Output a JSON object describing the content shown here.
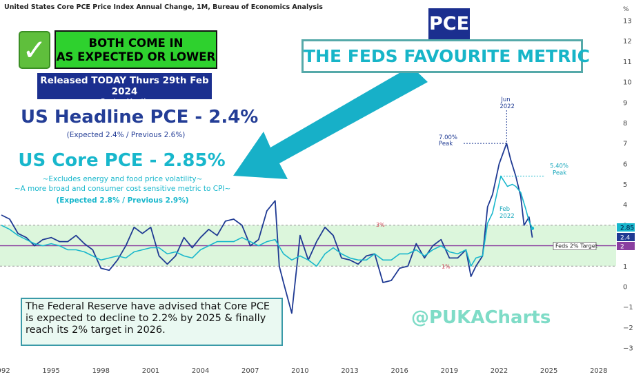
{
  "header": {
    "title": "United States Core PCE Price Index Annual Change, 1M, Bureau of Economics Analysis",
    "unit": "%"
  },
  "badges": {
    "check": "✓",
    "both_line1": "BOTH COME IN",
    "both_line2": "AS EXPECTED OR LOWER",
    "released_line1": "Released TODAY Thurs 29th Feb 2024",
    "released_line2": "For Jan Month",
    "pce": "PCE",
    "feds_metric": "THE FEDS FAVOURITE METRIC"
  },
  "headline": {
    "title": "US Headline PCE - 2.4%",
    "sub": "(Expected 2.4% / Previous 2.6%)"
  },
  "core": {
    "title": "US Core PCE - 2.85%",
    "sub1": "~Excludes energy and food price volatility~",
    "sub2": "~A more broad and consumer cost sensitive metric to CPI~",
    "sub3": "(Expected 2.8% / Previous 2.9%)"
  },
  "fed_note": "The Federal Reserve have advised that Core PCE is expected to decline to 2.2% by 2025 & finally reach its 2% target in 2026.",
  "watermark": "@PUKACharts",
  "colors": {
    "headline": "#1f3a93",
    "core": "#18b7cc",
    "band": "#d6f5d6",
    "target": "#8a3fa0"
  },
  "chart_data": {
    "type": "line",
    "ylim": [
      -3,
      13
    ],
    "xlim": [
      1992.0,
      2029.0
    ],
    "x_ticks": [
      "1992",
      "1995",
      "1998",
      "2001",
      "2004",
      "2007",
      "2010",
      "2013",
      "2016",
      "2019",
      "2022",
      "2025",
      "2028"
    ],
    "y_ticks": [
      "13",
      "12",
      "11",
      "10",
      "9",
      "8",
      "7",
      "6",
      "5",
      "4",
      "3",
      "2",
      "1",
      "0",
      "−1",
      "−2",
      "−3"
    ],
    "band": [
      1,
      3
    ],
    "band_labels": {
      "upper": "3%",
      "lower": "1%"
    },
    "target": {
      "value": 2,
      "label": "Feds 2% Target",
      "axis_label": "2"
    },
    "last_values": {
      "core": "2.85",
      "headline": "2.4"
    },
    "annotations": [
      {
        "text1": "Jun",
        "text2": "2022",
        "x": 2022.45,
        "y": 7.0
      },
      {
        "text1": "7.00%",
        "text2": "Peak",
        "x": 2022.45,
        "y": 7.0
      },
      {
        "text1": "5.40%",
        "text2": "Peak",
        "x": 2022.1,
        "y": 5.4
      },
      {
        "text1": "Feb",
        "text2": "2022",
        "x": 2022.1,
        "y": 5.4
      }
    ],
    "series": [
      {
        "name": "Headline PCE",
        "color": "#1f3a93",
        "points": [
          [
            1992.0,
            3.5
          ],
          [
            1992.5,
            3.3
          ],
          [
            1993.0,
            2.6
          ],
          [
            1993.5,
            2.4
          ],
          [
            1994.0,
            2.0
          ],
          [
            1994.5,
            2.3
          ],
          [
            1995.0,
            2.4
          ],
          [
            1995.5,
            2.2
          ],
          [
            1996.0,
            2.2
          ],
          [
            1996.5,
            2.5
          ],
          [
            1997.0,
            2.1
          ],
          [
            1997.5,
            1.8
          ],
          [
            1998.0,
            0.9
          ],
          [
            1998.5,
            0.8
          ],
          [
            1999.0,
            1.3
          ],
          [
            1999.5,
            2.0
          ],
          [
            2000.0,
            2.9
          ],
          [
            2000.5,
            2.6
          ],
          [
            2001.0,
            2.9
          ],
          [
            2001.5,
            1.5
          ],
          [
            2002.0,
            1.1
          ],
          [
            2002.5,
            1.5
          ],
          [
            2003.0,
            2.4
          ],
          [
            2003.5,
            1.9
          ],
          [
            2004.0,
            2.4
          ],
          [
            2004.5,
            2.8
          ],
          [
            2005.0,
            2.5
          ],
          [
            2005.5,
            3.2
          ],
          [
            2006.0,
            3.3
          ],
          [
            2006.5,
            3.0
          ],
          [
            2007.0,
            2.0
          ],
          [
            2007.5,
            2.3
          ],
          [
            2008.0,
            3.7
          ],
          [
            2008.5,
            4.2
          ],
          [
            2008.75,
            1.0
          ],
          [
            2009.0,
            0.2
          ],
          [
            2009.5,
            -1.3
          ],
          [
            2009.9,
            1.7
          ],
          [
            2010.0,
            2.5
          ],
          [
            2010.5,
            1.3
          ],
          [
            2011.0,
            2.2
          ],
          [
            2011.5,
            2.9
          ],
          [
            2012.0,
            2.5
          ],
          [
            2012.5,
            1.4
          ],
          [
            2013.0,
            1.3
          ],
          [
            2013.5,
            1.1
          ],
          [
            2014.0,
            1.5
          ],
          [
            2014.5,
            1.6
          ],
          [
            2015.0,
            0.2
          ],
          [
            2015.5,
            0.3
          ],
          [
            2016.0,
            0.9
          ],
          [
            2016.5,
            1.0
          ],
          [
            2017.0,
            2.1
          ],
          [
            2017.5,
            1.4
          ],
          [
            2018.0,
            2.0
          ],
          [
            2018.5,
            2.3
          ],
          [
            2019.0,
            1.4
          ],
          [
            2019.5,
            1.4
          ],
          [
            2020.0,
            1.8
          ],
          [
            2020.3,
            0.5
          ],
          [
            2020.6,
            1.0
          ],
          [
            2021.0,
            1.5
          ],
          [
            2021.3,
            3.9
          ],
          [
            2021.6,
            4.5
          ],
          [
            2022.0,
            6.0
          ],
          [
            2022.45,
            7.0
          ],
          [
            2022.7,
            6.2
          ],
          [
            2023.0,
            5.4
          ],
          [
            2023.3,
            4.4
          ],
          [
            2023.5,
            3.0
          ],
          [
            2023.8,
            3.4
          ],
          [
            2024.0,
            2.4
          ]
        ]
      },
      {
        "name": "Core PCE",
        "color": "#18b7cc",
        "points": [
          [
            1992.0,
            3.0
          ],
          [
            1992.5,
            2.8
          ],
          [
            1993.0,
            2.5
          ],
          [
            1993.5,
            2.3
          ],
          [
            1994.0,
            2.1
          ],
          [
            1994.5,
            2.0
          ],
          [
            1995.0,
            2.1
          ],
          [
            1995.5,
            2.0
          ],
          [
            1996.0,
            1.8
          ],
          [
            1996.5,
            1.8
          ],
          [
            1997.0,
            1.7
          ],
          [
            1997.5,
            1.5
          ],
          [
            1998.0,
            1.3
          ],
          [
            1998.5,
            1.4
          ],
          [
            1999.0,
            1.5
          ],
          [
            1999.5,
            1.4
          ],
          [
            2000.0,
            1.7
          ],
          [
            2000.5,
            1.8
          ],
          [
            2001.0,
            1.9
          ],
          [
            2001.5,
            1.9
          ],
          [
            2002.0,
            1.6
          ],
          [
            2002.5,
            1.7
          ],
          [
            2003.0,
            1.5
          ],
          [
            2003.5,
            1.4
          ],
          [
            2004.0,
            1.8
          ],
          [
            2004.5,
            2.0
          ],
          [
            2005.0,
            2.2
          ],
          [
            2005.5,
            2.2
          ],
          [
            2006.0,
            2.2
          ],
          [
            2006.5,
            2.4
          ],
          [
            2007.0,
            2.2
          ],
          [
            2007.5,
            2.0
          ],
          [
            2008.0,
            2.2
          ],
          [
            2008.5,
            2.3
          ],
          [
            2009.0,
            1.6
          ],
          [
            2009.5,
            1.3
          ],
          [
            2010.0,
            1.5
          ],
          [
            2010.5,
            1.3
          ],
          [
            2011.0,
            1.0
          ],
          [
            2011.5,
            1.6
          ],
          [
            2012.0,
            1.9
          ],
          [
            2012.5,
            1.6
          ],
          [
            2013.0,
            1.4
          ],
          [
            2013.5,
            1.3
          ],
          [
            2014.0,
            1.3
          ],
          [
            2014.5,
            1.6
          ],
          [
            2015.0,
            1.3
          ],
          [
            2015.5,
            1.3
          ],
          [
            2016.0,
            1.6
          ],
          [
            2016.5,
            1.6
          ],
          [
            2017.0,
            1.8
          ],
          [
            2017.5,
            1.5
          ],
          [
            2018.0,
            1.8
          ],
          [
            2018.5,
            2.0
          ],
          [
            2019.0,
            1.7
          ],
          [
            2019.5,
            1.6
          ],
          [
            2020.0,
            1.8
          ],
          [
            2020.3,
            1.0
          ],
          [
            2020.6,
            1.4
          ],
          [
            2021.0,
            1.5
          ],
          [
            2021.3,
            3.1
          ],
          [
            2021.6,
            3.6
          ],
          [
            2022.1,
            5.4
          ],
          [
            2022.5,
            4.9
          ],
          [
            2022.8,
            5.0
          ],
          [
            2023.0,
            4.9
          ],
          [
            2023.3,
            4.6
          ],
          [
            2023.6,
            3.8
          ],
          [
            2023.8,
            3.2
          ],
          [
            2024.0,
            2.85
          ]
        ]
      }
    ]
  }
}
